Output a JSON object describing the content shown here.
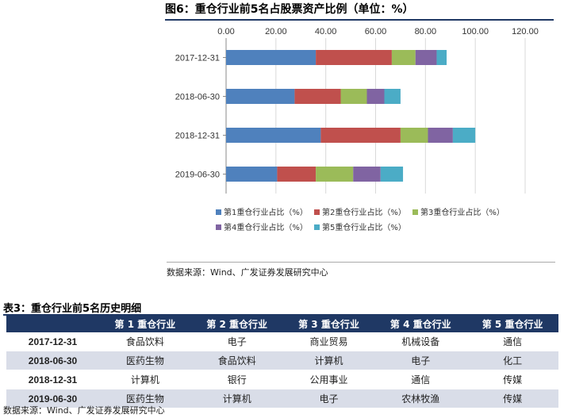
{
  "figure_title": "图6：重仓行业前5名占股票资产比例（单位：%）",
  "chart_data": {
    "type": "bar",
    "orientation": "horizontal",
    "stacked": true,
    "categories": [
      "2017-12-31",
      "2018-06-30",
      "2018-12-31",
      "2019-06-30"
    ],
    "series": [
      {
        "name": "第1重仓行业占比（%）",
        "color": "#4f81bd",
        "values": [
          36,
          27.5,
          38,
          20.5
        ]
      },
      {
        "name": "第2重仓行业占比（%）",
        "color": "#c0504d",
        "values": [
          30.5,
          18.5,
          32,
          15.5
        ]
      },
      {
        "name": "第3重仓行业占比（%）",
        "color": "#9bbb59",
        "values": [
          9.5,
          10.5,
          11,
          15
        ]
      },
      {
        "name": "第4重仓行业占比（%）",
        "color": "#8064a2",
        "values": [
          8.5,
          7,
          10,
          11
        ]
      },
      {
        "name": "第5重仓行业占比（%）",
        "color": "#4bacc6",
        "values": [
          4,
          6.5,
          9,
          9
        ]
      }
    ],
    "x_ticks": [
      "0.00",
      "20.00",
      "40.00",
      "60.00",
      "80.00",
      "100.00",
      "120.00"
    ],
    "xlim": [
      0,
      120
    ],
    "legend_position": "bottom"
  },
  "source_note_1": "数据来源：Wind、广发证券发展研究中心",
  "table_title": "表3：重仓行业前5名历史明细",
  "table": {
    "headers": [
      "",
      "第 1 重仓行业",
      "第 2 重仓行业",
      "第 3 重仓行业",
      "第 4 重仓行业",
      "第 5 重仓行业"
    ],
    "rows": [
      [
        "2017-12-31",
        "食品饮料",
        "电子",
        "商业贸易",
        "机械设备",
        "通信"
      ],
      [
        "2018-06-30",
        "医药生物",
        "食品饮料",
        "计算机",
        "电子",
        "化工"
      ],
      [
        "2018-12-31",
        "计算机",
        "银行",
        "公用事业",
        "通信",
        "传媒"
      ],
      [
        "2019-06-30",
        "医药生物",
        "计算机",
        "电子",
        "农林牧渔",
        "传媒"
      ]
    ]
  },
  "source_note_2": "数据来源：Wind、广发证券发展研究中心"
}
